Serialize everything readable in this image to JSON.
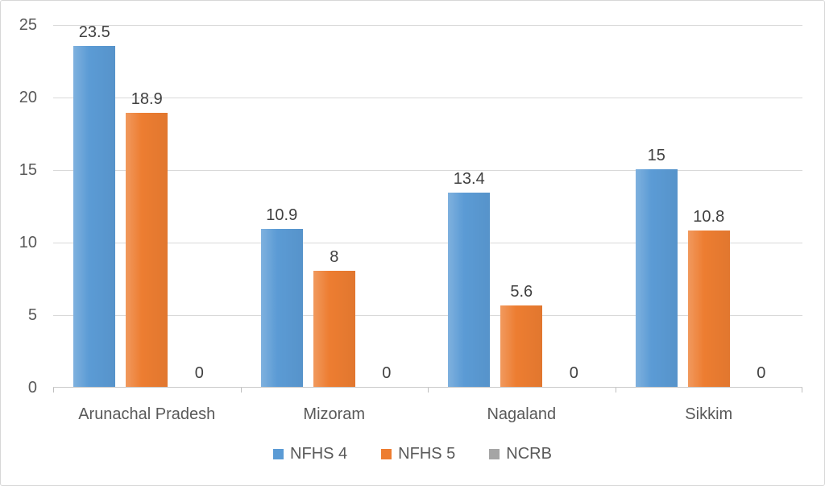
{
  "chart_data": {
    "type": "bar",
    "title": "",
    "xlabel": "",
    "ylabel": "",
    "categories": [
      "Arunachal Pradesh",
      "Mizoram",
      "Nagaland",
      "Sikkim"
    ],
    "series": [
      {
        "name": "NFHS 4",
        "color": "#5B9BD5",
        "values": [
          23.5,
          10.9,
          13.4,
          15
        ],
        "labels": [
          "23.5",
          "10.9",
          "13.4",
          "15"
        ]
      },
      {
        "name": "NFHS 5",
        "color": "#ED7D31",
        "values": [
          18.9,
          8,
          5.6,
          10.8
        ],
        "labels": [
          "18.9",
          "8",
          "5.6",
          "10.8"
        ]
      },
      {
        "name": "NCRB",
        "color": "#A5A5A5",
        "values": [
          0,
          0,
          0,
          0
        ],
        "labels": [
          "0",
          "0",
          "0",
          "0"
        ]
      }
    ],
    "ylim": [
      0,
      25
    ],
    "yticks": [
      0,
      5,
      10,
      15,
      20,
      25
    ],
    "ytick_labels": [
      "0",
      "5",
      "10",
      "15",
      "20",
      "25"
    ],
    "grid": true,
    "legend_position": "bottom",
    "legend_entries": [
      "NFHS 4",
      "NFHS 5",
      "NCRB"
    ]
  }
}
